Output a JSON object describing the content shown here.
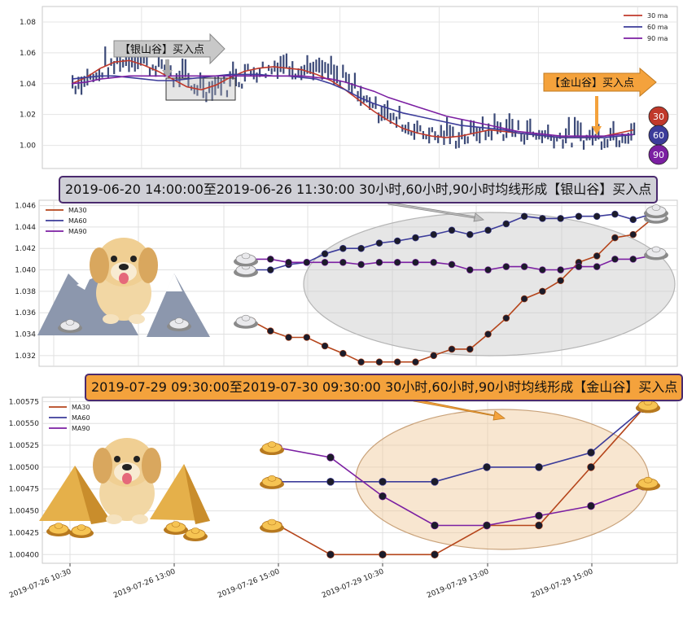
{
  "chart_data": [
    {
      "type": "line",
      "panel": "overview",
      "y_ticks": [
        "1.00",
        "1.02",
        "1.04",
        "1.06",
        "1.08"
      ],
      "ylim": [
        0.985,
        1.09
      ],
      "grid": true,
      "legend_position": "top-right",
      "series": [
        {
          "name": "30 ma",
          "color": "#c0392b",
          "values": [
            1.04,
            1.044,
            1.05,
            1.054,
            1.055,
            1.052,
            1.048,
            1.043,
            1.038,
            1.036,
            1.039,
            1.044,
            1.048,
            1.05,
            1.051,
            1.05,
            1.049,
            1.046,
            1.042,
            1.036,
            1.029,
            1.022,
            1.016,
            1.011,
            1.008,
            1.006,
            1.005,
            1.006,
            1.008,
            1.01,
            1.009,
            1.008,
            1.007,
            1.006,
            1.005,
            1.005,
            1.005,
            1.006,
            1.008,
            1.01
          ]
        },
        {
          "name": "60 ma",
          "color": "#3c3c9a",
          "values": [
            1.043,
            1.044,
            1.045,
            1.045,
            1.044,
            1.043,
            1.042,
            1.042,
            1.043,
            1.044,
            1.045,
            1.046,
            1.046,
            1.046,
            1.045,
            1.045,
            1.044,
            1.043,
            1.04,
            1.036,
            1.031,
            1.027,
            1.024,
            1.021,
            1.019,
            1.017,
            1.015,
            1.013,
            1.012,
            1.011,
            1.01,
            1.008,
            1.007,
            1.006,
            1.005,
            1.005,
            1.005,
            1.005,
            1.006,
            1.007
          ]
        },
        {
          "name": "90 ma",
          "color": "#7b1fa2",
          "values": [
            1.04,
            1.041,
            1.043,
            1.044,
            1.045,
            1.045,
            1.045,
            1.045,
            1.045,
            1.045,
            1.045,
            1.045,
            1.045,
            1.045,
            1.045,
            1.045,
            1.045,
            1.044,
            1.043,
            1.041,
            1.038,
            1.035,
            1.031,
            1.028,
            1.025,
            1.022,
            1.019,
            1.017,
            1.015,
            1.013,
            1.011,
            1.009,
            1.008,
            1.007,
            1.006,
            1.006,
            1.006,
            1.006,
            1.007,
            1.007
          ]
        }
      ],
      "annotations": [
        {
          "text": "【银山谷】买入点",
          "color": "#c8c8c8"
        },
        {
          "text": "【金山谷】买入点",
          "color": "#f4a23c"
        }
      ],
      "badges": [
        {
          "text": "30",
          "color": "#c0392b"
        },
        {
          "text": "60",
          "color": "#3c3c9a"
        },
        {
          "text": "90",
          "color": "#7b1fa2"
        }
      ]
    },
    {
      "type": "line",
      "panel": "silver-valley",
      "title": "2019-06-20 14:00:00至2019-06-26 11:30:00 30小时,60小时,90小时均线形成【银山谷】买入点",
      "y_ticks": [
        "1.032",
        "1.034",
        "1.036",
        "1.038",
        "1.040",
        "1.042",
        "1.044",
        "1.046"
      ],
      "ylim": [
        1.031,
        1.0465
      ],
      "grid": true,
      "legend_position": "top-left",
      "series": [
        {
          "name": "MA30",
          "color": "#b5451b",
          "values": [
            1.0352,
            1.0343,
            1.0337,
            1.0337,
            1.0329,
            1.0322,
            1.0314,
            1.0314,
            1.0314,
            1.0314,
            1.032,
            1.0326,
            1.0326,
            1.034,
            1.0355,
            1.0373,
            1.038,
            1.039,
            1.0407,
            1.0413,
            1.043,
            1.0433,
            1.0447
          ]
        },
        {
          "name": "MA60",
          "color": "#3c3c9a",
          "values": [
            1.04,
            1.04,
            1.0405,
            1.0407,
            1.0415,
            1.042,
            1.042,
            1.0425,
            1.0427,
            1.043,
            1.0433,
            1.0437,
            1.0433,
            1.0437,
            1.0443,
            1.045,
            1.0448,
            1.0448,
            1.045,
            1.045,
            1.0452,
            1.0447,
            1.0452
          ]
        },
        {
          "name": "MA90",
          "color": "#7b1fa2",
          "values": [
            1.041,
            1.041,
            1.0407,
            1.0407,
            1.0407,
            1.0407,
            1.0405,
            1.0407,
            1.0407,
            1.0407,
            1.0407,
            1.0405,
            1.04,
            1.04,
            1.0403,
            1.0403,
            1.04,
            1.04,
            1.0403,
            1.0403,
            1.041,
            1.041,
            1.0413
          ]
        }
      ]
    },
    {
      "type": "line",
      "panel": "gold-valley",
      "title": "2019-07-29 09:30:00至2019-07-30 09:30:00 30小时,60小时,90小时均线形成【金山谷】买入点",
      "y_ticks": [
        "1.00400",
        "1.00425",
        "1.00450",
        "1.00475",
        "1.00500",
        "1.00525",
        "1.00550",
        "1.00575"
      ],
      "ylim": [
        1.0039,
        1.0058
      ],
      "x_ticks": [
        "2019-07-26 10:30",
        "2019-07-26 13:00",
        "2019-07-26 15:00",
        "2019-07-29 10:30",
        "2019-07-29 13:00",
        "2019-07-29 15:00"
      ],
      "grid": true,
      "legend_position": "top-left",
      "series": [
        {
          "name": "MA30",
          "color": "#b5451b",
          "values": [
            1.004333,
            1.004,
            1.004,
            1.004,
            1.004333,
            1.004333,
            1.005,
            1.005667
          ]
        },
        {
          "name": "MA60",
          "color": "#3c3c9a",
          "values": [
            1.004833,
            1.004833,
            1.004833,
            1.004833,
            1.005,
            1.005,
            1.005167,
            1.005667
          ]
        },
        {
          "name": "MA90",
          "color": "#7b1fa2",
          "values": [
            1.005222,
            1.005111,
            1.004667,
            1.004333,
            1.004333,
            1.004444,
            1.004556,
            1.004778
          ]
        }
      ]
    }
  ]
}
